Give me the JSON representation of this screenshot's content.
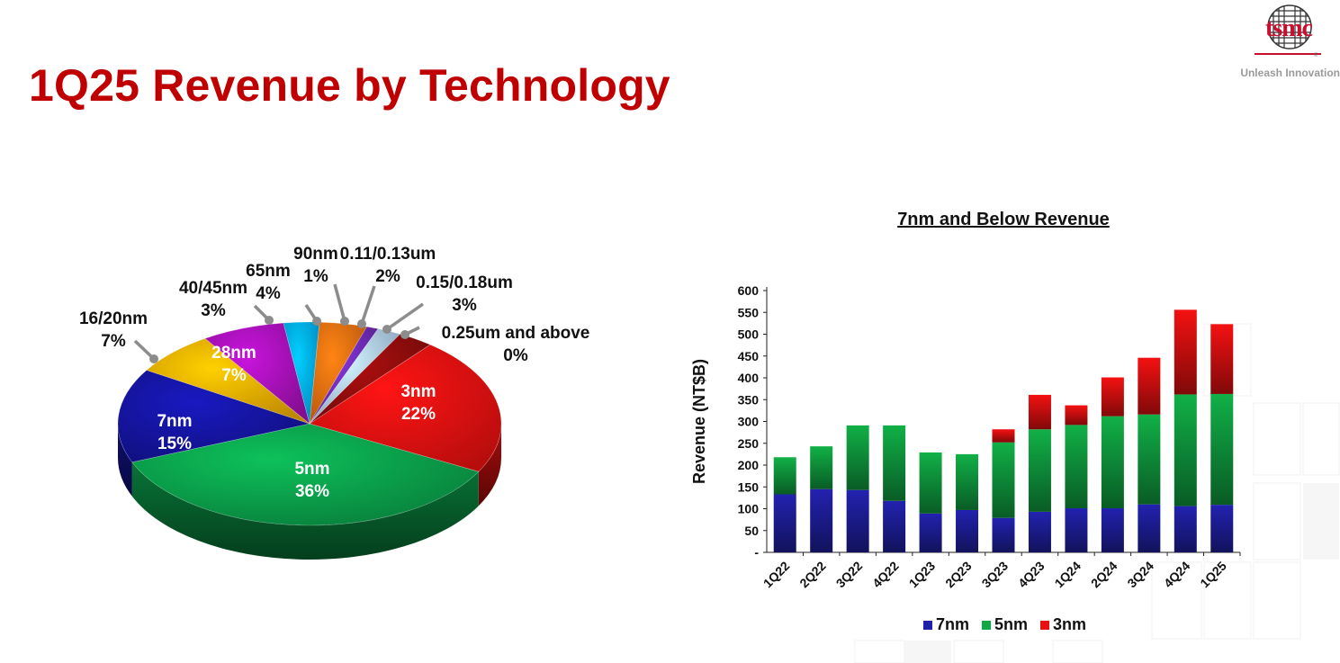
{
  "header": {
    "title": "1Q25 Revenue by Technology",
    "logo_text": "tsmc",
    "tagline": "Unleash Innovation"
  },
  "chart_data": [
    {
      "type": "pie",
      "title": "",
      "slices": [
        {
          "label": "3nm",
          "value": 22,
          "pct": "22%",
          "color": "#e01010"
        },
        {
          "label": "5nm",
          "value": 36,
          "pct": "36%",
          "color": "#0a9a48"
        },
        {
          "label": "7nm",
          "value": 15,
          "pct": "15%",
          "color": "#14149a"
        },
        {
          "label": "16/20nm",
          "value": 7,
          "pct": "7%",
          "color": "#e8a600"
        },
        {
          "label": "28nm",
          "value": 7,
          "pct": "7%",
          "color": "#a010b0"
        },
        {
          "label": "40/45nm",
          "value": 3,
          "pct": "3%",
          "color": "#00a6e8"
        },
        {
          "label": "65nm",
          "value": 4,
          "pct": "4%",
          "color": "#e06a10"
        },
        {
          "label": "90nm",
          "value": 1,
          "pct": "1%",
          "color": "#6a2ab0"
        },
        {
          "label": "0.11/0.13um",
          "value": 2,
          "pct": "2%",
          "color": "#a8c4e6"
        },
        {
          "label": "0.15/0.18um",
          "value": 3,
          "pct": "3%",
          "color": "#8a0c0c"
        },
        {
          "label": "0.25um and above",
          "value": 0,
          "pct": "0%",
          "color": "#888888"
        }
      ]
    },
    {
      "type": "bar",
      "stacked": true,
      "title": "7nm and Below Revenue",
      "ylabel": "Revenue (NT$B)",
      "ylim": [
        0,
        600
      ],
      "yticks": [
        "-",
        "50",
        "100",
        "150",
        "200",
        "250",
        "300",
        "350",
        "400",
        "450",
        "500",
        "550",
        "600"
      ],
      "categories": [
        "1Q22",
        "2Q22",
        "3Q22",
        "4Q22",
        "1Q23",
        "2Q23",
        "3Q23",
        "4Q23",
        "1Q24",
        "2Q24",
        "3Q24",
        "4Q24",
        "1Q25"
      ],
      "series": [
        {
          "name": "7nm",
          "color": "#2020a8",
          "values": [
            133,
            145,
            143,
            118,
            89,
            97,
            79,
            93,
            101,
            101,
            110,
            106,
            109
          ]
        },
        {
          "name": "5nm",
          "color": "#10a844",
          "values": [
            85,
            98,
            148,
            173,
            140,
            128,
            173,
            189,
            191,
            211,
            206,
            256,
            254
          ]
        },
        {
          "name": "3nm",
          "color": "#e81010",
          "values": [
            0,
            0,
            0,
            0,
            0,
            0,
            30,
            79,
            45,
            89,
            130,
            194,
            160
          ]
        }
      ]
    }
  ]
}
